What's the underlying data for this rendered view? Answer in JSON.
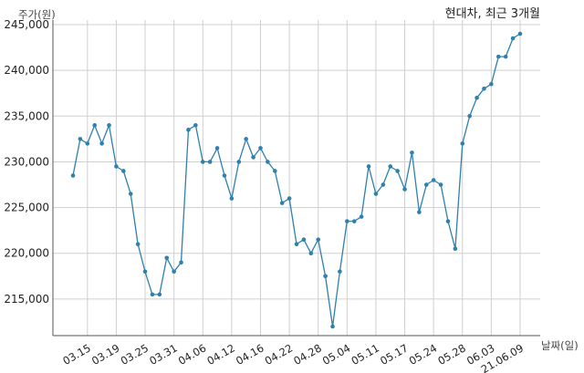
{
  "chart_data": {
    "type": "line",
    "title": "현대차, 최근 3개월",
    "ylabel": "주가(원)",
    "xlabel": "날짜(일)",
    "ylim": [
      211000,
      245500
    ],
    "yticks": [
      215000,
      220000,
      225000,
      230000,
      235000,
      240000,
      245000
    ],
    "ytick_labels": [
      "215,000",
      "220,000",
      "225,000",
      "230,000",
      "235,000",
      "240,000",
      "245,000"
    ],
    "grid": true,
    "color": "#2e80ad",
    "x": [
      "03.11",
      "03.12",
      "03.15",
      "03.16",
      "03.17",
      "03.18",
      "03.19",
      "03.22",
      "03.23",
      "03.24",
      "03.25",
      "03.26",
      "03.29",
      "03.30",
      "03.31",
      "04.01",
      "04.02",
      "04.05",
      "04.06",
      "04.07",
      "04.08",
      "04.09",
      "04.12",
      "04.13",
      "04.14",
      "04.15",
      "04.16",
      "04.19",
      "04.20",
      "04.21",
      "04.22",
      "04.23",
      "04.26",
      "04.27",
      "04.28",
      "04.29",
      "04.30",
      "05.03",
      "05.04",
      "05.06",
      "05.07",
      "05.10",
      "05.11",
      "05.12",
      "05.13",
      "05.14",
      "05.17",
      "05.18",
      "05.20",
      "05.21",
      "05.24",
      "05.25",
      "05.26",
      "05.27",
      "05.28",
      "05.31",
      "06.01",
      "06.02",
      "06.03",
      "06.04",
      "06.07",
      "06.08",
      "21.06.09"
    ],
    "xticks": [
      "03.15",
      "03.19",
      "03.25",
      "03.31",
      "04.06",
      "04.12",
      "04.16",
      "04.22",
      "04.28",
      "05.04",
      "05.11",
      "05.17",
      "05.24",
      "05.28",
      "06.03",
      "21.06.09"
    ],
    "series": [
      {
        "values": [
          228500,
          232500,
          232000,
          234000,
          232000,
          234000,
          229500,
          229000,
          226500,
          221000,
          218000,
          215500,
          215500,
          219500,
          218000,
          219000,
          233500,
          234000,
          230000,
          230000,
          231500,
          228500,
          226000,
          230000,
          232500,
          230500,
          231500,
          230000,
          229000,
          225500,
          226000,
          221000,
          221500,
          220000,
          221500,
          217500,
          212000,
          218000,
          223500,
          223500,
          224000,
          229500,
          226500,
          227500,
          229500,
          229000,
          227000,
          231000,
          224500,
          227500,
          228000,
          227500,
          223500,
          220500,
          232000,
          235000,
          237000,
          238000,
          238500,
          241500,
          241500,
          243500,
          244000
        ]
      }
    ]
  }
}
